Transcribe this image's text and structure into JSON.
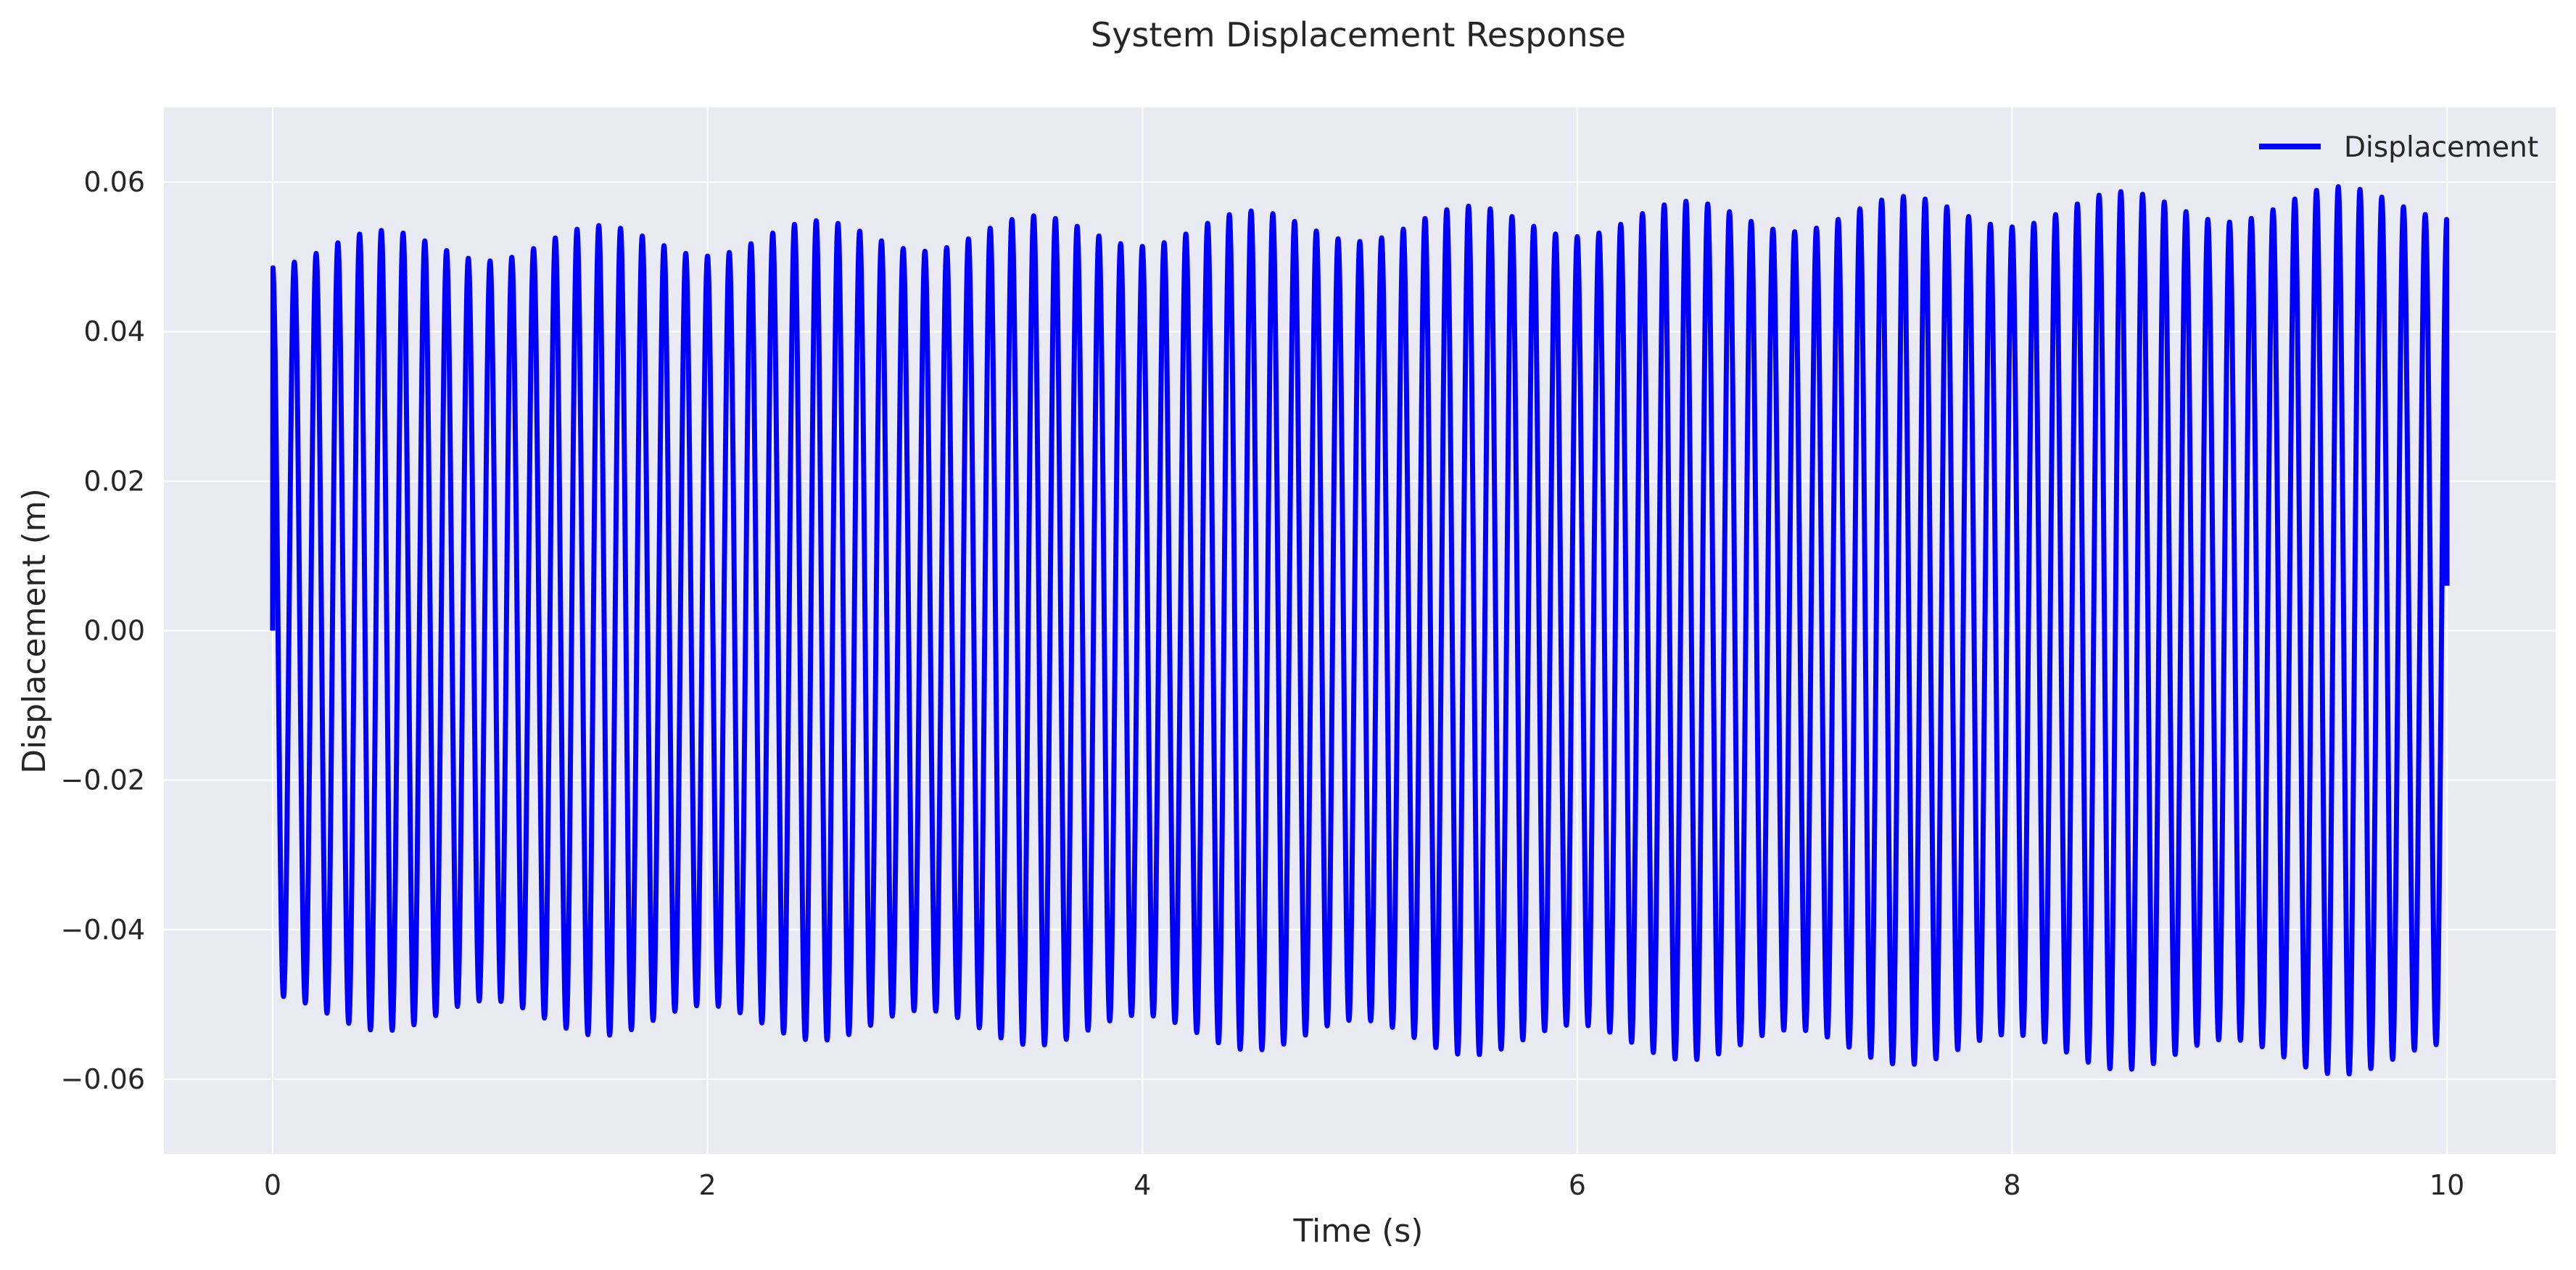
{
  "chart_data": {
    "type": "line",
    "title": "System Displacement Response",
    "xlabel": "Time (s)",
    "ylabel": "Displacement (m)",
    "xlim": [
      -0.5,
      10.5
    ],
    "ylim": [
      -0.07,
      0.07
    ],
    "x_ticks": [
      0,
      2,
      4,
      6,
      8,
      10
    ],
    "x_tick_labels": [
      "0",
      "2",
      "4",
      "6",
      "8",
      "10"
    ],
    "y_ticks": [
      -0.06,
      -0.04,
      -0.02,
      0.0,
      0.02,
      0.04,
      0.06
    ],
    "y_tick_labels": [
      "−0.06",
      "−0.04",
      "−0.02",
      "0.00",
      "0.02",
      "0.04",
      "0.06"
    ],
    "grid": true,
    "legend_position": "top-right",
    "series": [
      {
        "name": "Displacement",
        "color": "#0000ff",
        "signal": {
          "t_start": 0,
          "t_end": 10,
          "frequency_hz": 10,
          "base_amplitude": 0.051,
          "amplitude_drift_per_s": 0.00065,
          "amplitude_modulation": 0.0022,
          "modulation_frequency_hz": 1,
          "initial_value": 0.0,
          "final_value": 0.006
        }
      }
    ]
  },
  "colors": {
    "plot_background": "#eaeaf2",
    "grid": "#ffffff",
    "line": "#0000ff"
  }
}
